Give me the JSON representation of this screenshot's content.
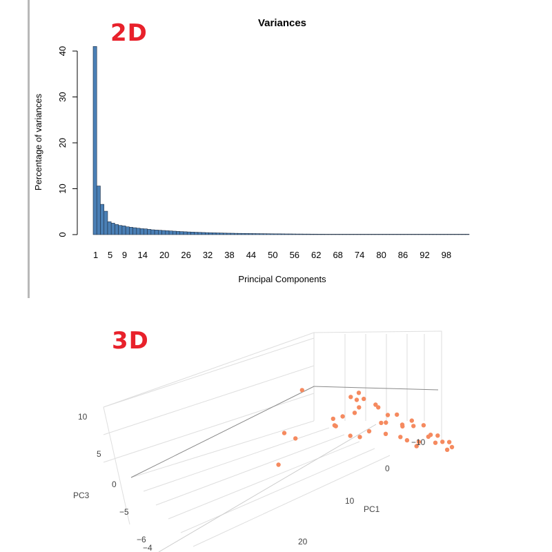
{
  "labels": {
    "top": "2D",
    "bottom": "3D"
  },
  "colors": {
    "bars": "#4a7fb5",
    "bar_edge": "#1f2f44",
    "points": "#f58a5f",
    "label": "#e8212b"
  },
  "chart_data": [
    {
      "type": "bar",
      "title": "Variances",
      "xlabel": "Principal Components",
      "ylabel": "Percentage of variances",
      "ylim": [
        0,
        42
      ],
      "yticks": [
        0,
        10,
        20,
        30,
        40
      ],
      "xtick_labels": [
        "1",
        "5",
        "9",
        "14",
        "20",
        "26",
        "32",
        "38",
        "44",
        "50",
        "56",
        "62",
        "68",
        "74",
        "80",
        "86",
        "92",
        "98"
      ],
      "categories": [
        "1",
        "2",
        "3",
        "4",
        "5",
        "6",
        "7",
        "8",
        "9",
        "10",
        "11",
        "12",
        "13",
        "14",
        "15",
        "16",
        "17",
        "18",
        "19",
        "20",
        "21",
        "22",
        "23",
        "24",
        "25",
        "26",
        "27",
        "28",
        "29",
        "30",
        "31",
        "32",
        "33",
        "34",
        "35",
        "36",
        "37",
        "38",
        "39",
        "40",
        "41",
        "42",
        "43",
        "44",
        "45",
        "46",
        "47",
        "48",
        "49",
        "50",
        "51",
        "52",
        "53",
        "54",
        "55",
        "56",
        "57",
        "58",
        "59",
        "60",
        "61",
        "62",
        "63",
        "64",
        "65",
        "66",
        "67",
        "68",
        "69",
        "70",
        "71",
        "72",
        "73",
        "74",
        "75",
        "76",
        "77",
        "78",
        "79",
        "80",
        "81",
        "82",
        "83",
        "84",
        "85",
        "86",
        "87",
        "88",
        "89",
        "90",
        "91",
        "92",
        "93",
        "94",
        "95",
        "96",
        "97",
        "98",
        "99",
        "100",
        "101",
        "102",
        "103",
        "104"
      ],
      "values": [
        41,
        10.6,
        6.6,
        5.1,
        2.8,
        2.5,
        2.2,
        2.0,
        1.9,
        1.7,
        1.6,
        1.5,
        1.4,
        1.3,
        1.25,
        1.15,
        1.05,
        1.0,
        0.95,
        0.9,
        0.85,
        0.8,
        0.75,
        0.7,
        0.66,
        0.62,
        0.58,
        0.55,
        0.52,
        0.49,
        0.46,
        0.43,
        0.41,
        0.39,
        0.37,
        0.35,
        0.33,
        0.31,
        0.3,
        0.28,
        0.27,
        0.26,
        0.25,
        0.24,
        0.23,
        0.22,
        0.21,
        0.2,
        0.19,
        0.18,
        0.17,
        0.17,
        0.16,
        0.15,
        0.15,
        0.14,
        0.13,
        0.13,
        0.12,
        0.12,
        0.11,
        0.11,
        0.1,
        0.1,
        0.09,
        0.09,
        0.09,
        0.08,
        0.08,
        0.08,
        0.07,
        0.07,
        0.07,
        0.06,
        0.06,
        0.06,
        0.06,
        0.05,
        0.05,
        0.05,
        0.05,
        0.04,
        0.04,
        0.04,
        0.04,
        0.04,
        0.03,
        0.03,
        0.03,
        0.03,
        0.03,
        0.03,
        0.02,
        0.02,
        0.02,
        0.02,
        0.02,
        0.02,
        0.02,
        0.01,
        0.01,
        0.01,
        0.01,
        0.01
      ]
    },
    {
      "type": "scatter",
      "axes": {
        "x": "PC1",
        "z": "PC3"
      },
      "pc1_ticks": [
        "−10",
        "0",
        "10",
        "20"
      ],
      "pc3_ticks": [
        "10",
        "5",
        "0",
        "−5"
      ],
      "pc2_ticks": [
        "−6",
        "−4"
      ],
      "points": [
        {
          "pc1": 26,
          "pc2": -6.2,
          "pc3": -5.8
        },
        {
          "pc1": 20,
          "pc2": -4.6,
          "pc3": 8.5
        },
        {
          "pc1": 24,
          "pc2": -6.4,
          "pc3": -2.0
        },
        {
          "pc1": 24,
          "pc2": -5.5,
          "pc3": 0.4
        },
        {
          "pc1": 14,
          "pc2": -3.6,
          "pc3": 4.2
        },
        {
          "pc1": 15,
          "pc2": -4.4,
          "pc3": 1.8
        },
        {
          "pc1": 15,
          "pc2": -4.3,
          "pc3": 2.1
        },
        {
          "pc1": 9,
          "pc2": -2.1,
          "pc3": 9.5
        },
        {
          "pc1": 12,
          "pc2": -3.2,
          "pc3": 4.9
        },
        {
          "pc1": 13,
          "pc2": -4.4,
          "pc3": -0.2
        },
        {
          "pc1": 11,
          "pc2": -4.0,
          "pc3": -0.1
        },
        {
          "pc1": 6,
          "pc2": -1.0,
          "pc3": 11.5
        },
        {
          "pc1": 6,
          "pc2": -1.4,
          "pc3": 9.8
        },
        {
          "pc1": 8,
          "pc2": -2.0,
          "pc3": 9.0
        },
        {
          "pc1": 10,
          "pc2": -3.0,
          "pc3": 5.5
        },
        {
          "pc1": 8,
          "pc2": -3.0,
          "pc3": 2.0
        },
        {
          "pc1": 4,
          "pc2": -1.4,
          "pc3": 8.0
        },
        {
          "pc1": 5,
          "pc2": -2.6,
          "pc3": 3.6
        },
        {
          "pc1": 6,
          "pc2": -2.8,
          "pc3": 3.4
        },
        {
          "pc1": 2,
          "pc2": -1.0,
          "pc3": 7.0
        },
        {
          "pc1": 0,
          "pc2": -1.0,
          "pc3": 5.0
        },
        {
          "pc1": 4,
          "pc2": -2.0,
          "pc3": 2.5
        },
        {
          "pc1": -2,
          "pc2": -0.6,
          "pc3": 6.0
        },
        {
          "pc1": -5,
          "pc2": 0.2,
          "pc3": 6.0
        },
        {
          "pc1": -7,
          "pc2": 0.8,
          "pc3": 5.0
        },
        {
          "pc1": -9,
          "pc2": 1.4,
          "pc3": 5.5
        },
        {
          "pc1": -4,
          "pc2": 0.0,
          "pc3": 3.0
        },
        {
          "pc1": -1,
          "pc2": -0.8,
          "pc3": 2.5
        },
        {
          "pc1": 3,
          "pc2": -2.6,
          "pc3": 0.8
        },
        {
          "pc1": -6,
          "pc2": 0.4,
          "pc3": 4.2
        },
        {
          "pc1": -8,
          "pc2": 1.0,
          "pc3": 3.8
        },
        {
          "pc1": -10,
          "pc2": 1.6,
          "pc3": 4.6
        },
        {
          "pc1": -11,
          "pc2": 1.8,
          "pc3": 3.4
        },
        {
          "pc1": -12,
          "pc2": 2.0,
          "pc3": 4.0
        },
        {
          "pc1": -3,
          "pc2": -0.4,
          "pc3": 1.8
        },
        {
          "pc1": 1,
          "pc2": -1.6,
          "pc3": 3.9
        },
        {
          "pc1": 7,
          "pc2": -1.6,
          "pc3": 8.2
        },
        {
          "pc1": 3,
          "pc2": -0.6,
          "pc3": 9.6
        },
        {
          "pc1": -2,
          "pc2": 0.6,
          "pc3": 9.0
        },
        {
          "pc1": -6,
          "pc2": 1.6,
          "pc3": 8.0
        },
        {
          "pc1": -13,
          "pc2": 2.8,
          "pc3": 6.0
        }
      ]
    }
  ]
}
